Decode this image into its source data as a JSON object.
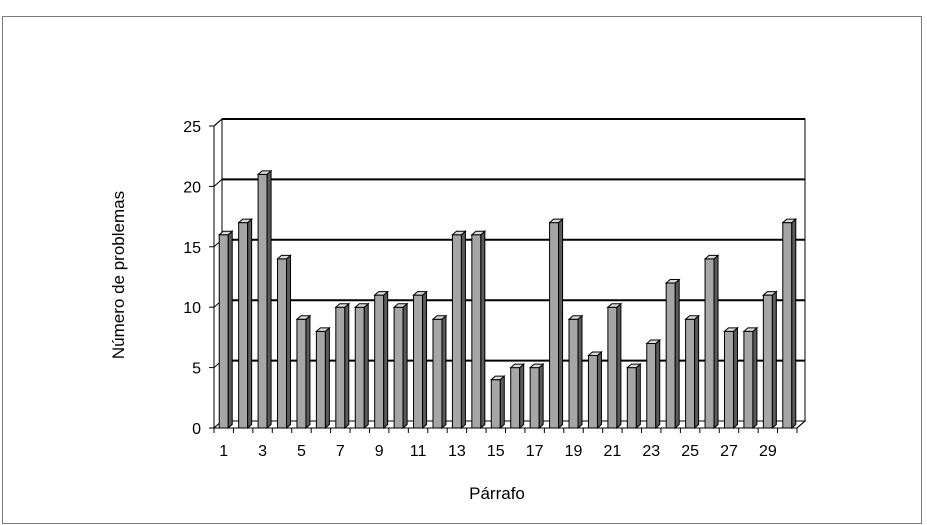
{
  "chart_data": {
    "type": "bar",
    "categories": [
      1,
      2,
      3,
      4,
      5,
      6,
      7,
      8,
      9,
      10,
      11,
      12,
      13,
      14,
      15,
      16,
      17,
      18,
      19,
      20,
      21,
      22,
      23,
      24,
      25,
      26,
      27,
      28,
      29,
      30
    ],
    "values": [
      16,
      17,
      21,
      14,
      9,
      8,
      10,
      10,
      11,
      10,
      11,
      9,
      16,
      16,
      4,
      5,
      5,
      17,
      9,
      6,
      10,
      5,
      7,
      12,
      9,
      14,
      8,
      8,
      11,
      17
    ],
    "xtick_labels": [
      "1",
      "3",
      "5",
      "7",
      "9",
      "11",
      "13",
      "15",
      "17",
      "19",
      "21",
      "23",
      "25",
      "27",
      "29"
    ],
    "ytick_labels": [
      "0",
      "5",
      "10",
      "15",
      "20",
      "25"
    ],
    "title": "",
    "xlabel": "Párrafo",
    "ylabel": "Número de problemas",
    "ylim": [
      0,
      25
    ],
    "grid": true,
    "legend": "none",
    "bar_color": "#a6a6a6",
    "bar_dark_color": "#5a5a5a",
    "bar_light_color": "#d9d9d9"
  }
}
